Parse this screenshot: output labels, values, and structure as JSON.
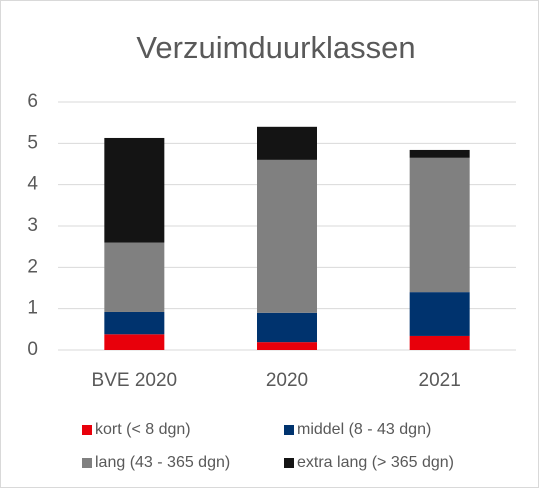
{
  "chart_data": {
    "type": "stacked_bar",
    "title": "Verzuimduurklassen",
    "categories": [
      "BVE 2020",
      "2020",
      "2021"
    ],
    "series": [
      {
        "name": "kort (< 8 dgn)",
        "color": "#e8000b",
        "values": [
          0.38,
          0.19,
          0.34
        ]
      },
      {
        "name": "middel (8 - 43 dgn)",
        "color": "#00336e",
        "values": [
          0.54,
          0.71,
          1.06
        ]
      },
      {
        "name": "lang (43 - 365 dgn)",
        "color": "#808080",
        "values": [
          1.68,
          3.7,
          3.25
        ]
      },
      {
        "name": "extra lang (> 365 dgn)",
        "color": "#141414",
        "values": [
          2.53,
          0.8,
          0.19
        ]
      }
    ],
    "ylim": [
      0,
      6
    ],
    "yticks": [
      0,
      1,
      2,
      3,
      4,
      5,
      6
    ],
    "grid": true,
    "legend": "bottom"
  }
}
